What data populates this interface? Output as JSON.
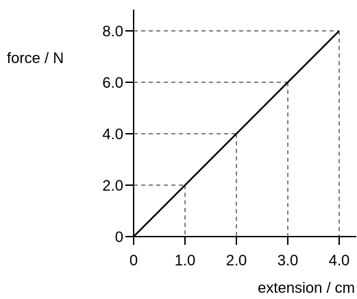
{
  "chart_data": {
    "type": "line",
    "title": "",
    "xlabel": "extension / cm",
    "ylabel": "force / N",
    "x_ticks": [
      "0",
      "1.0",
      "2.0",
      "3.0",
      "4.0"
    ],
    "y_ticks": [
      "0",
      "2.0",
      "4.0",
      "6.0",
      "8.0"
    ],
    "xlim": [
      0,
      4.3
    ],
    "ylim": [
      0,
      8.8
    ],
    "grid": false,
    "series": [
      {
        "x": [
          0,
          4.0
        ],
        "y": [
          0,
          8.0
        ]
      }
    ],
    "guide_points": [
      {
        "x": 1.0,
        "y": 2.0
      },
      {
        "x": 2.0,
        "y": 4.0
      },
      {
        "x": 3.0,
        "y": 6.0
      },
      {
        "x": 4.0,
        "y": 8.0
      }
    ]
  }
}
